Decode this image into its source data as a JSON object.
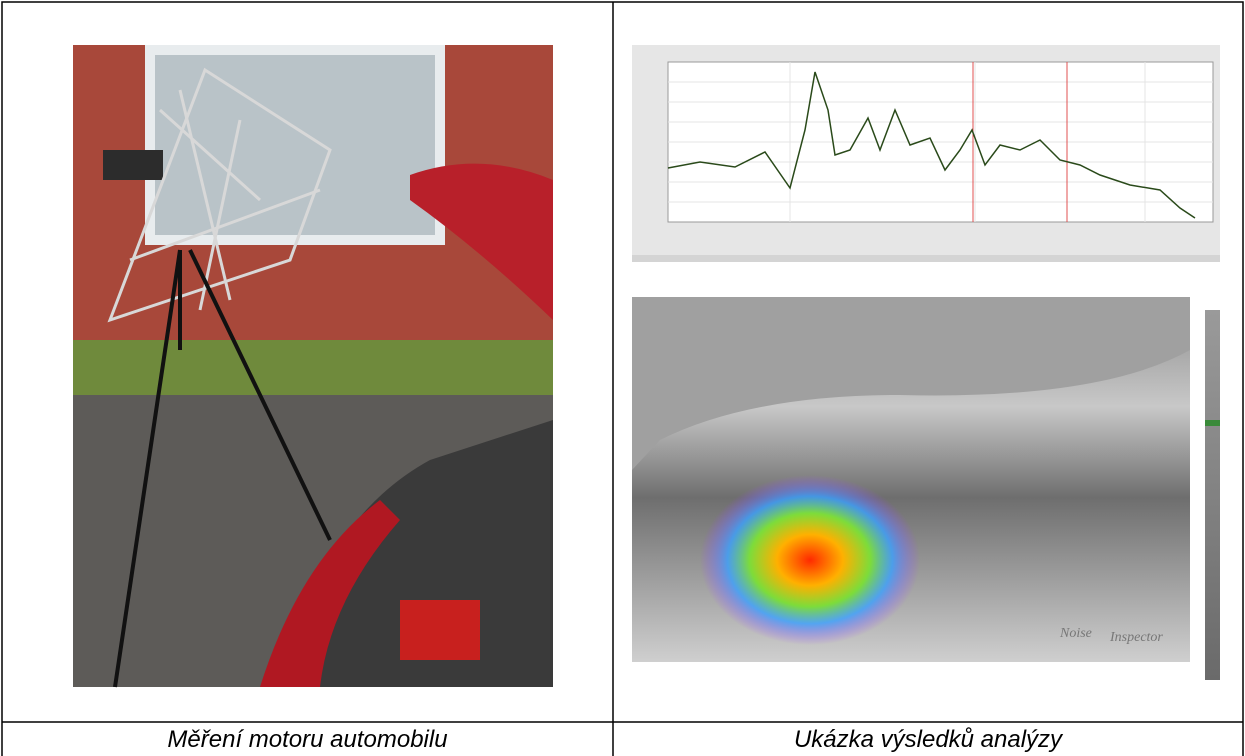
{
  "cells": [
    {
      "caption": "Měření motoru automobilu"
    },
    {
      "caption": "Ukázka výsledků analýzy",
      "watermark": [
        "Noise",
        "Inspector"
      ]
    }
  ]
}
